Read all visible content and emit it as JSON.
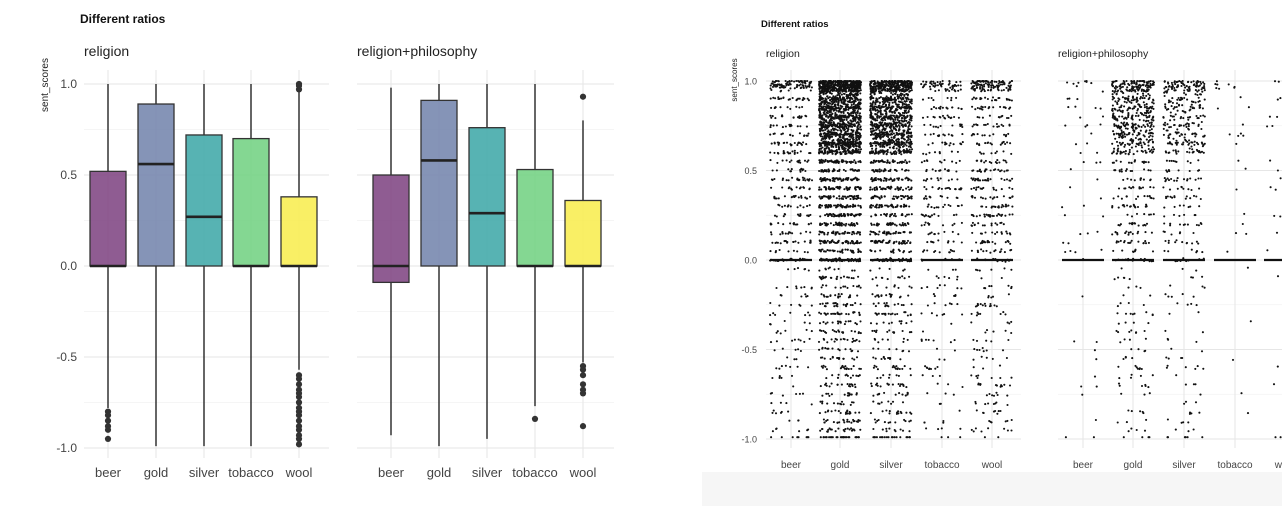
{
  "chart_data": [
    {
      "type": "box",
      "title": "Different ratios",
      "ylabel": "sent_scores",
      "xlabel": "",
      "ylim": [
        -1.07,
        1.05
      ],
      "yticks": [
        1.0,
        0.5,
        0.0,
        -0.5,
        -1.0
      ],
      "ytick_labels": [
        "1.0",
        "0.5",
        "0.0",
        "-0.5",
        "-1.0"
      ],
      "categories": [
        "beer",
        "gold",
        "silver",
        "tobacco",
        "wool"
      ],
      "colors": [
        "#7b3f7f",
        "#7081aa",
        "#3aa6a6",
        "#6fd07f",
        "#f8ec4a"
      ],
      "grid": true,
      "panels": [
        {
          "facet": "religion",
          "boxes": [
            {
              "category": "beer",
              "whisker_low": -0.78,
              "q1": 0.0,
              "median": 0.0,
              "q3": 0.52,
              "whisker_high": 1.0,
              "outliers": [
                -0.8,
                -0.82,
                -0.85,
                -0.88,
                -0.9,
                -0.95
              ]
            },
            {
              "category": "gold",
              "whisker_low": -0.99,
              "q1": 0.0,
              "median": 0.56,
              "q3": 0.89,
              "whisker_high": 1.0,
              "outliers": []
            },
            {
              "category": "silver",
              "whisker_low": -0.99,
              "q1": 0.0,
              "median": 0.27,
              "q3": 0.72,
              "whisker_high": 1.0,
              "outliers": []
            },
            {
              "category": "tobacco",
              "whisker_low": -0.99,
              "q1": 0.0,
              "median": 0.0,
              "q3": 0.7,
              "whisker_high": 1.0,
              "outliers": []
            },
            {
              "category": "wool",
              "whisker_low": -0.57,
              "q1": 0.0,
              "median": 0.0,
              "q3": 0.38,
              "whisker_high": 0.96,
              "outliers": [
                0.97,
                0.99,
                1.0,
                -0.6,
                -0.62,
                -0.65,
                -0.68,
                -0.7,
                -0.72,
                -0.75,
                -0.78,
                -0.8,
                -0.82,
                -0.85,
                -0.88,
                -0.9,
                -0.93,
                -0.95,
                -0.98
              ]
            }
          ]
        },
        {
          "facet": "religion+philosophy",
          "boxes": [
            {
              "category": "beer",
              "whisker_low": -0.93,
              "q1": -0.09,
              "median": 0.0,
              "q3": 0.5,
              "whisker_high": 0.98,
              "outliers": []
            },
            {
              "category": "gold",
              "whisker_low": -0.99,
              "q1": 0.0,
              "median": 0.58,
              "q3": 0.91,
              "whisker_high": 1.0,
              "outliers": []
            },
            {
              "category": "silver",
              "whisker_low": -0.95,
              "q1": 0.0,
              "median": 0.29,
              "q3": 0.76,
              "whisker_high": 1.0,
              "outliers": []
            },
            {
              "category": "tobacco",
              "whisker_low": -0.77,
              "q1": 0.0,
              "median": 0.0,
              "q3": 0.53,
              "whisker_high": 1.0,
              "outliers": [
                -0.84
              ]
            },
            {
              "category": "wool",
              "whisker_low": -0.53,
              "q1": 0.0,
              "median": 0.0,
              "q3": 0.36,
              "whisker_high": 0.8,
              "outliers": [
                0.93,
                -0.55,
                -0.57,
                -0.6,
                -0.65,
                -0.68,
                -0.7,
                -0.88
              ]
            }
          ]
        }
      ]
    },
    {
      "type": "scatter",
      "title": "Different ratios",
      "ylabel": "sent_scores",
      "xlabel": "",
      "ylim": [
        -1.03,
        1.01
      ],
      "yticks": [
        1.0,
        0.5,
        0.0,
        -0.5,
        -1.0
      ],
      "ytick_labels": [
        "1.0",
        "0.5",
        "0.0",
        "-0.5",
        "-1.0"
      ],
      "categories": [
        "beer",
        "gold",
        "silver",
        "tobacco",
        "wool"
      ],
      "grid": true,
      "jitter": true,
      "panels": [
        {
          "facet": "religion",
          "approx_point_counts": [
            500,
            2500,
            1800,
            350,
            550
          ]
        },
        {
          "facet": "religion+philosophy",
          "approx_point_counts": [
            60,
            700,
            450,
            30,
            50
          ]
        }
      ]
    }
  ]
}
